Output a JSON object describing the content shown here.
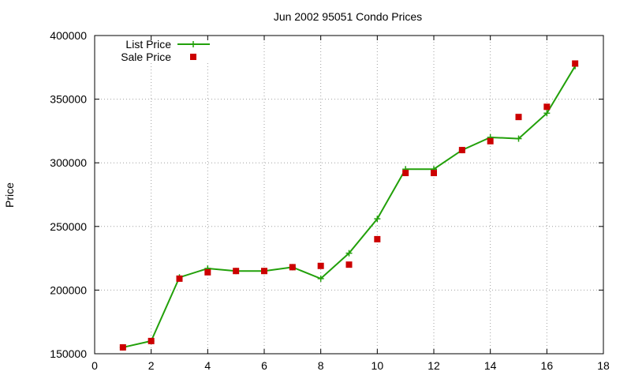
{
  "chart_data": {
    "type": "line",
    "title": "Jun 2002 95051 Condo Prices",
    "xlabel": "",
    "ylabel": "Price",
    "xlim": [
      0,
      18
    ],
    "ylim": [
      150000,
      400000
    ],
    "xticks": [
      0,
      2,
      4,
      6,
      8,
      10,
      12,
      14,
      16,
      18
    ],
    "yticks": [
      150000,
      200000,
      250000,
      300000,
      350000,
      400000
    ],
    "grid": true,
    "legend_position": "top-left",
    "series": [
      {
        "name": "List Price",
        "style": "line-points",
        "color": "#22a00a",
        "x": [
          1,
          2,
          3,
          4,
          5,
          6,
          7,
          8,
          9,
          10,
          11,
          12,
          13,
          14,
          15,
          16,
          17
        ],
        "values": [
          155000,
          160000,
          210000,
          217000,
          215000,
          215000,
          218000,
          209000,
          229000,
          256000,
          295000,
          295000,
          310000,
          320000,
          319000,
          339000,
          376000
        ]
      },
      {
        "name": "Sale Price",
        "style": "points",
        "color": "#cc0000",
        "x": [
          1,
          2,
          3,
          4,
          5,
          6,
          7,
          8,
          9,
          10,
          11,
          12,
          13,
          14,
          15,
          16,
          17
        ],
        "values": [
          155000,
          160000,
          209000,
          214000,
          215000,
          215000,
          218000,
          219000,
          220000,
          240000,
          292000,
          292000,
          310000,
          317000,
          336000,
          344000,
          378000
        ]
      }
    ]
  }
}
